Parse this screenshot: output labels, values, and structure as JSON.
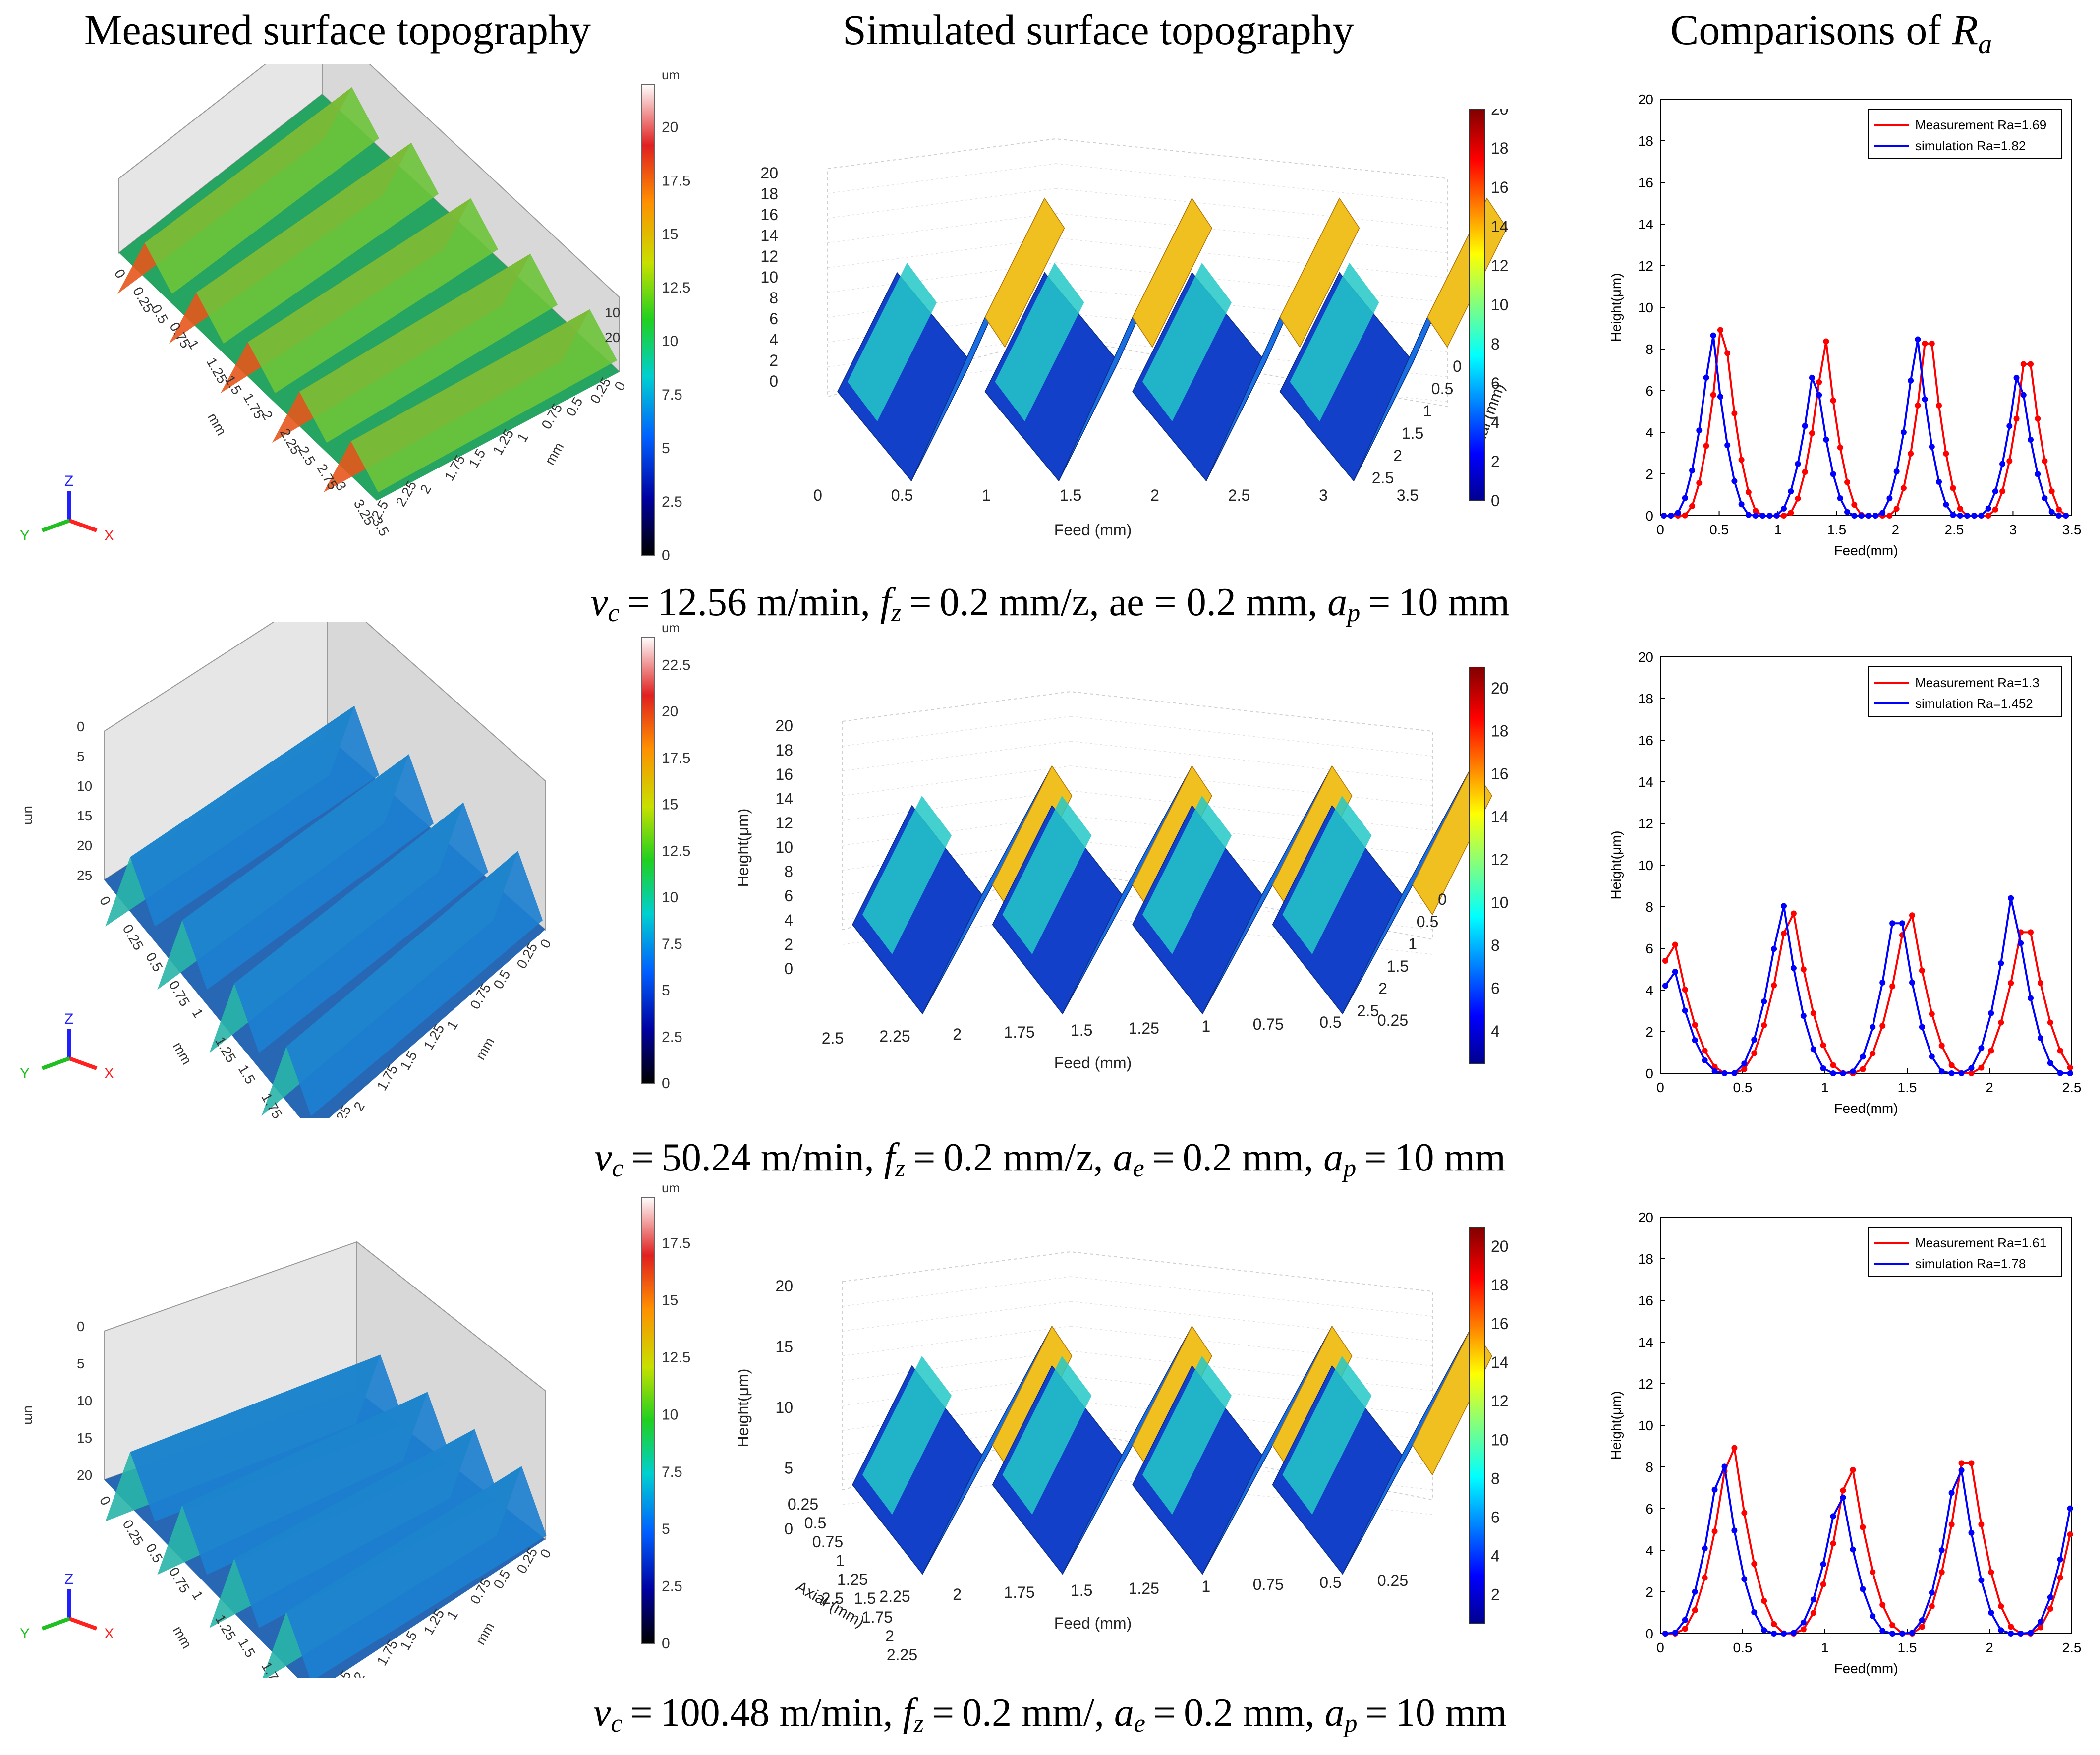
{
  "titles": {
    "measured": "Measured surface topography",
    "simulated": "Simulated surface topography",
    "comparison_prefix": "Comparisons of ",
    "comparison_symbol": "R",
    "comparison_sub": "a"
  },
  "colors": {
    "measurement": "#ff0000",
    "simulation": "#0000ff",
    "axis_x": "#ff2020",
    "axis_y": "#20c020",
    "axis_z": "#2020ff"
  },
  "measured_common": {
    "unit": "mm",
    "colorbar_unit": "um",
    "z_unit": "um",
    "axis_x": "X",
    "axis_y": "Y",
    "axis_z": "Z"
  },
  "simulated_common": {
    "height_label": "Height(μm)",
    "feed_label": "Feed (mm)",
    "axial_label": "Axial (mm)"
  },
  "rows": [
    {
      "caption": {
        "vc": "12.56",
        "fz": "0.2",
        "ae_label": "ae",
        "ae": "0.2",
        "ap": "10",
        "fz_unit": "mm/z"
      },
      "measured": {
        "colorbar_ticks": [
          "20",
          "17.5",
          "15",
          "12.5",
          "10",
          "7.5",
          "5",
          "2.5",
          "0"
        ],
        "feed_ticks": [
          "0",
          "0.25",
          "0.5",
          "0.75",
          "1",
          "1.25",
          "1.5",
          "1.75",
          "2",
          "2.25",
          "2.5",
          "2.75",
          "3",
          "3.25",
          "3.5"
        ],
        "axial_ticks": [
          "2.5",
          "2.25",
          "2",
          "1.75",
          "1.5",
          "1.25",
          "1",
          "0.75",
          "0.5",
          "0.25",
          "0"
        ],
        "z_ticks": [
          "20",
          "10"
        ]
      },
      "simulated": {
        "z_ticks": [
          "20",
          "18",
          "16",
          "14",
          "12",
          "10",
          "8",
          "6",
          "4",
          "2",
          "0"
        ],
        "feed_ticks": [
          "0",
          "0.5",
          "1",
          "1.5",
          "2",
          "2.5",
          "3",
          "3.5"
        ],
        "axial_ticks": [
          "0",
          "0.5",
          "1",
          "1.5",
          "2",
          "2.5"
        ],
        "colorbar_ticks": [
          "20",
          "18",
          "16",
          "14",
          "12",
          "10",
          "8",
          "6",
          "4",
          "2",
          "0"
        ]
      },
      "chart_data": {
        "type": "line",
        "xlabel": "Feed(mm)",
        "ylabel": "Height(μm)",
        "xlim": [
          0,
          3.5
        ],
        "ylim": [
          0,
          20
        ],
        "xticks": [
          0,
          0.5,
          1,
          1.5,
          2,
          2.5,
          3,
          3.5
        ],
        "yticks": [
          0,
          2,
          4,
          6,
          8,
          10,
          12,
          14,
          16,
          18,
          20
        ],
        "legend": "top-right",
        "series": [
          {
            "name": "Measurement Ra=1.69",
            "peaks": [
              [
                0.53,
                10.1
              ],
              [
                1.4,
                8.9
              ],
              [
                2.28,
                10.0
              ],
              [
                3.12,
                8.8
              ]
            ],
            "halfwidth": 0.33
          },
          {
            "name": "simulation Ra=1.82",
            "peaks": [
              [
                0.44,
                9.2
              ],
              [
                1.31,
                7.5
              ],
              [
                2.18,
                9.0
              ],
              [
                3.05,
                7.5
              ]
            ],
            "halfwidth": 0.33
          }
        ]
      }
    },
    {
      "caption": {
        "vc": "50.24",
        "fz": "0.2",
        "ae_label": "a",
        "ae": "0.2",
        "ap": "10",
        "fz_unit": "mm/z"
      },
      "measured": {
        "colorbar_ticks": [
          "22.5",
          "20",
          "17.5",
          "15",
          "12.5",
          "10",
          "7.5",
          "5",
          "2.5",
          "0"
        ],
        "feed_ticks": [
          "0",
          "0.25",
          "0.5",
          "0.75",
          "1",
          "1.25",
          "1.5",
          "1.75",
          "2",
          "2.25"
        ],
        "axial_ticks": [
          "2.5",
          "2.25",
          "2",
          "1.75",
          "1.5",
          "1.25",
          "1",
          "0.75",
          "0.5",
          "0.25",
          "0"
        ],
        "z_ticks": [
          "25",
          "20",
          "15",
          "10",
          "5",
          "0"
        ]
      },
      "simulated": {
        "z_ticks": [
          "20",
          "18",
          "16",
          "14",
          "12",
          "10",
          "8",
          "6",
          "4",
          "2",
          "0"
        ],
        "feed_ticks": [
          "2.5",
          "2.25",
          "2",
          "1.75",
          "1.5",
          "1.25",
          "1",
          "0.75",
          "0.5",
          "0.25"
        ],
        "axial_ticks": [
          "0",
          "0.5",
          "1",
          "1.5",
          "2",
          "2.5"
        ],
        "colorbar_ticks": [
          "20",
          "18",
          "16",
          "14",
          "12",
          "10",
          "8",
          "6",
          "4"
        ]
      },
      "chart_data": {
        "type": "line",
        "xlabel": "Feed(mm)",
        "ylabel": "Height(μm)",
        "xlim": [
          0,
          2.5
        ],
        "ylim": [
          0,
          20
        ],
        "xticks": [
          0,
          0.5,
          1,
          1.5,
          2,
          2.5
        ],
        "yticks": [
          0,
          2,
          4,
          6,
          8,
          10,
          12,
          14,
          16,
          18,
          20
        ],
        "legend": "top-right",
        "series": [
          {
            "name": "Measurement Ra=1.3",
            "peaks": [
              [
                0.07,
                7.0
              ],
              [
                0.79,
                8.7
              ],
              [
                1.51,
                8.6
              ],
              [
                2.22,
                8.2
              ]
            ],
            "halfwidth": 0.33
          },
          {
            "name": "simulation Ra=1.452",
            "peaks": [
              [
                0.07,
                5.6
              ],
              [
                0.74,
                8.6
              ],
              [
                1.44,
                8.9
              ],
              [
                2.14,
                9.0
              ]
            ],
            "halfwidth": 0.3
          }
        ]
      }
    },
    {
      "caption": {
        "vc": "100.48",
        "fz": "0.2",
        "ae_label": "a",
        "ae": "0.2",
        "ap": "10",
        "fz_unit": "mm/"
      },
      "measured": {
        "colorbar_ticks": [
          "17.5",
          "15",
          "12.5",
          "10",
          "7.5",
          "5",
          "2.5",
          "0"
        ],
        "feed_ticks": [
          "0",
          "0.25",
          "0.5",
          "0.75",
          "1",
          "1.25",
          "1.5",
          "1.75",
          "2",
          "2.25"
        ],
        "axial_ticks": [
          "2.5",
          "2.25",
          "2",
          "1.75",
          "1.5",
          "1.25",
          "1",
          "0.75",
          "0.5",
          "0.25",
          "0"
        ],
        "z_ticks": [
          "20",
          "15",
          "10",
          "5",
          "0"
        ]
      },
      "simulated": {
        "z_ticks": [
          "20",
          "15",
          "10",
          "5",
          "0"
        ],
        "feed_ticks": [
          "2.5",
          "2.25",
          "2",
          "1.75",
          "1.5",
          "1.25",
          "1",
          "0.75",
          "0.5",
          "0.25"
        ],
        "axial_ticks": [
          "0.25",
          "0.5",
          "0.75",
          "1",
          "1.25",
          "1.5",
          "1.75",
          "2",
          "2.25"
        ],
        "colorbar_ticks": [
          "20",
          "18",
          "16",
          "14",
          "12",
          "10",
          "8",
          "6",
          "4",
          "2"
        ]
      },
      "chart_data": {
        "type": "line",
        "xlabel": "Feed(mm)",
        "ylabel": "Height(μm)",
        "xlim": [
          0,
          2.5
        ],
        "ylim": [
          0,
          20
        ],
        "xticks": [
          0,
          0.5,
          1,
          1.5,
          2,
          2.5
        ],
        "yticks": [
          0,
          2,
          4,
          6,
          8,
          10,
          12,
          14,
          16,
          18,
          20
        ],
        "legend": "top-right",
        "series": [
          {
            "name": "Measurement Ra=1.61",
            "peaks": [
              [
                0.43,
                10.1
              ],
              [
                1.15,
                8.9
              ],
              [
                1.86,
                9.9
              ],
              [
                2.58,
                9.0
              ]
            ],
            "halfwidth": 0.33
          },
          {
            "name": "simulation Ra=1.78",
            "peaks": [
              [
                0.37,
                9.2
              ],
              [
                1.09,
                7.5
              ],
              [
                1.81,
                9.0
              ],
              [
                2.53,
                8.0
              ]
            ],
            "halfwidth": 0.3
          }
        ]
      }
    }
  ]
}
